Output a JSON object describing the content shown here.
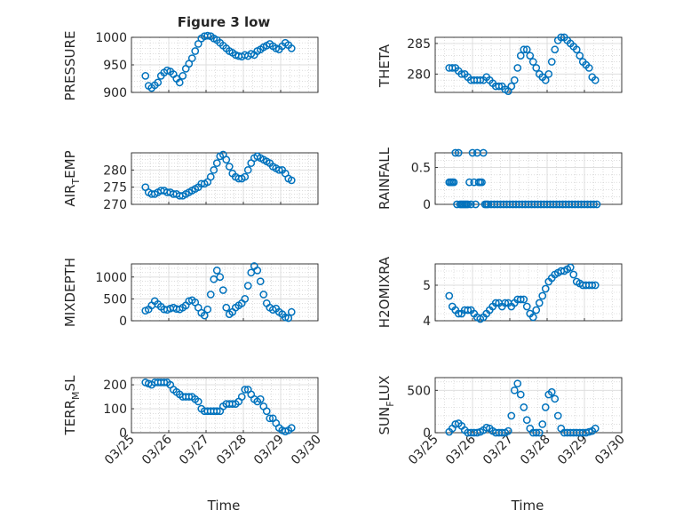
{
  "figure": {
    "title": "Figure 3 low",
    "xlabel": "Time",
    "x_tick_labels": [
      "03/25",
      "03/26",
      "03/27",
      "03/28",
      "03/29",
      "03/30"
    ],
    "marker_color": "#0072BD"
  },
  "chart_data": [
    {
      "type": "scatter",
      "ylabel": "PRESSURE",
      "xlim": [
        "03/25 00:00",
        "03/30 00:00"
      ],
      "ylim": [
        900,
        1000
      ],
      "y_ticks": [
        900,
        950,
        1000
      ],
      "grid": true,
      "x": [
        "03/25 09:00",
        "03/25 11:00",
        "03/25 13:00",
        "03/25 15:00",
        "03/25 17:00",
        "03/25 19:00",
        "03/25 21:00",
        "03/25 23:00",
        "03/26 01:00",
        "03/26 03:00",
        "03/26 05:00",
        "03/26 07:00",
        "03/26 09:00",
        "03/26 11:00",
        "03/26 13:00",
        "03/26 15:00",
        "03/26 17:00",
        "03/26 19:00",
        "03/26 21:00",
        "03/26 23:00",
        "03/27 01:00",
        "03/27 03:00",
        "03/27 05:00",
        "03/27 07:00",
        "03/27 09:00",
        "03/27 11:00",
        "03/27 13:00",
        "03/27 15:00",
        "03/27 17:00",
        "03/27 19:00",
        "03/27 21:00",
        "03/27 23:00",
        "03/28 01:00",
        "03/28 03:00",
        "03/28 05:00",
        "03/28 07:00",
        "03/28 09:00",
        "03/28 11:00",
        "03/28 13:00",
        "03/28 15:00",
        "03/28 17:00",
        "03/28 19:00",
        "03/28 21:00",
        "03/28 23:00",
        "03/29 01:00",
        "03/29 03:00",
        "03/29 05:00",
        "03/29 07:00"
      ],
      "y": [
        930,
        912,
        908,
        913,
        918,
        930,
        936,
        940,
        938,
        933,
        925,
        918,
        930,
        943,
        952,
        962,
        975,
        988,
        998,
        1002,
        1003,
        1002,
        998,
        995,
        990,
        985,
        980,
        975,
        972,
        968,
        966,
        965,
        968,
        966,
        970,
        968,
        975,
        978,
        982,
        985,
        988,
        984,
        980,
        978,
        984,
        990,
        986,
        980
      ]
    },
    {
      "type": "scatter",
      "ylabel": "THETA",
      "xlim": [
        "03/25 00:00",
        "03/30 00:00"
      ],
      "ylim": [
        277,
        286
      ],
      "y_ticks": [
        280,
        285
      ],
      "grid": true,
      "x": [
        "03/25 09:00",
        "03/25 11:00",
        "03/25 13:00",
        "03/25 15:00",
        "03/25 17:00",
        "03/25 19:00",
        "03/25 21:00",
        "03/25 23:00",
        "03/26 01:00",
        "03/26 03:00",
        "03/26 05:00",
        "03/26 07:00",
        "03/26 09:00",
        "03/26 11:00",
        "03/26 13:00",
        "03/26 15:00",
        "03/26 17:00",
        "03/26 19:00",
        "03/26 21:00",
        "03/26 23:00",
        "03/27 01:00",
        "03/27 03:00",
        "03/27 05:00",
        "03/27 07:00",
        "03/27 09:00",
        "03/27 11:00",
        "03/27 13:00",
        "03/27 15:00",
        "03/27 17:00",
        "03/27 19:00",
        "03/27 21:00",
        "03/27 23:00",
        "03/28 01:00",
        "03/28 03:00",
        "03/28 05:00",
        "03/28 07:00",
        "03/28 09:00",
        "03/28 11:00",
        "03/28 13:00",
        "03/28 15:00",
        "03/28 17:00",
        "03/28 19:00",
        "03/28 21:00",
        "03/28 23:00",
        "03/29 01:00",
        "03/29 03:00",
        "03/29 05:00",
        "03/29 07:00"
      ],
      "y": [
        281,
        281,
        281,
        280.5,
        280,
        280,
        279.5,
        279,
        279,
        279,
        279,
        279,
        279.5,
        279,
        278.5,
        278,
        278,
        278,
        277.5,
        277.2,
        278,
        279,
        281,
        283,
        284,
        284,
        283,
        282,
        281,
        280,
        279.5,
        279,
        280,
        282,
        284,
        285.5,
        286,
        286,
        285.5,
        285,
        284.5,
        284,
        283,
        282,
        281.5,
        281,
        279.5,
        279
      ]
    },
    {
      "type": "scatter",
      "ylabel": "AIR_TEMP",
      "xlim": [
        "03/25 00:00",
        "03/30 00:00"
      ],
      "ylim": [
        270,
        285
      ],
      "y_ticks": [
        270,
        275,
        280
      ],
      "grid": true,
      "x": [
        "03/25 09:00",
        "03/25 11:00",
        "03/25 13:00",
        "03/25 15:00",
        "03/25 17:00",
        "03/25 19:00",
        "03/25 21:00",
        "03/25 23:00",
        "03/26 01:00",
        "03/26 03:00",
        "03/26 05:00",
        "03/26 07:00",
        "03/26 09:00",
        "03/26 11:00",
        "03/26 13:00",
        "03/26 15:00",
        "03/26 17:00",
        "03/26 19:00",
        "03/26 21:00",
        "03/26 23:00",
        "03/27 01:00",
        "03/27 03:00",
        "03/27 05:00",
        "03/27 07:00",
        "03/27 09:00",
        "03/27 11:00",
        "03/27 13:00",
        "03/27 15:00",
        "03/27 17:00",
        "03/27 19:00",
        "03/27 21:00",
        "03/27 23:00",
        "03/28 01:00",
        "03/28 03:00",
        "03/28 05:00",
        "03/28 07:00",
        "03/28 09:00",
        "03/28 11:00",
        "03/28 13:00",
        "03/28 15:00",
        "03/28 17:00",
        "03/28 19:00",
        "03/28 21:00",
        "03/28 23:00",
        "03/29 01:00",
        "03/29 03:00",
        "03/29 05:00",
        "03/29 07:00"
      ],
      "y": [
        275,
        273.5,
        273,
        273,
        273.5,
        274,
        274,
        273.5,
        273.5,
        273,
        273,
        272.5,
        272.5,
        273,
        273.5,
        274,
        274.5,
        275,
        276,
        276,
        276.5,
        278,
        280,
        282,
        284,
        284.5,
        283,
        281,
        279,
        278,
        277.5,
        277.5,
        278,
        280,
        282,
        283.5,
        284,
        283.5,
        283,
        282.5,
        282,
        281,
        280.5,
        280,
        280,
        279,
        277.5,
        277
      ]
    },
    {
      "type": "scatter",
      "ylabel": "RAINFALL",
      "xlim": [
        "03/25 00:00",
        "03/30 00:00"
      ],
      "ylim": [
        0,
        0.7
      ],
      "y_ticks": [
        0,
        0.5
      ],
      "grid": true,
      "x": [
        "03/25 09:00",
        "03/25 10:00",
        "03/25 11:00",
        "03/25 12:00",
        "03/25 13:00",
        "03/25 14:00",
        "03/25 15:00",
        "03/25 16:00",
        "03/25 17:00",
        "03/25 18:00",
        "03/25 19:00",
        "03/25 20:00",
        "03/25 21:00",
        "03/25 22:00",
        "03/25 23:00",
        "03/26 00:00",
        "03/26 01:00",
        "03/26 02:00",
        "03/26 03:00",
        "03/26 04:00",
        "03/26 05:00",
        "03/26 06:00",
        "03/26 07:00",
        "03/26 08:00",
        "03/26 09:00",
        "03/26 10:00",
        "03/26 12:00",
        "03/26 14:00",
        "03/26 16:00",
        "03/26 18:00",
        "03/26 20:00",
        "03/26 22:00",
        "03/27 00:00",
        "03/27 02:00",
        "03/27 04:00",
        "03/27 06:00",
        "03/27 08:00",
        "03/27 10:00",
        "03/27 12:00",
        "03/27 14:00",
        "03/27 16:00",
        "03/27 18:00",
        "03/27 20:00",
        "03/27 22:00",
        "03/28 00:00",
        "03/28 02:00",
        "03/28 04:00",
        "03/28 06:00",
        "03/28 08:00",
        "03/28 10:00",
        "03/28 12:00",
        "03/28 14:00",
        "03/28 16:00",
        "03/28 18:00",
        "03/28 20:00",
        "03/28 22:00",
        "03/29 00:00",
        "03/29 02:00",
        "03/29 04:00",
        "03/29 06:00",
        "03/29 08:00"
      ],
      "y": [
        0.3,
        0.3,
        0.3,
        0.3,
        0.7,
        0,
        0.7,
        0,
        0,
        0,
        0,
        0,
        0,
        0.3,
        0,
        0.7,
        0.3,
        0,
        0.7,
        0.3,
        0.3,
        0.3,
        0.7,
        0,
        0,
        0,
        0,
        0,
        0,
        0,
        0,
        0,
        0,
        0,
        0,
        0,
        0,
        0,
        0,
        0,
        0,
        0,
        0,
        0,
        0,
        0,
        0,
        0,
        0,
        0,
        0,
        0,
        0,
        0,
        0,
        0,
        0,
        0,
        0,
        0,
        0
      ]
    },
    {
      "type": "scatter",
      "ylabel": "MIXDEPTH",
      "xlim": [
        "03/25 00:00",
        "03/30 00:00"
      ],
      "ylim": [
        0,
        1300
      ],
      "y_ticks": [
        0,
        500,
        1000
      ],
      "grid": true,
      "x": [
        "03/25 09:00",
        "03/25 11:00",
        "03/25 13:00",
        "03/25 15:00",
        "03/25 17:00",
        "03/25 19:00",
        "03/25 21:00",
        "03/25 23:00",
        "03/26 01:00",
        "03/26 03:00",
        "03/26 05:00",
        "03/26 07:00",
        "03/26 09:00",
        "03/26 11:00",
        "03/26 13:00",
        "03/26 15:00",
        "03/26 17:00",
        "03/26 19:00",
        "03/26 21:00",
        "03/26 23:00",
        "03/27 01:00",
        "03/27 03:00",
        "03/27 05:00",
        "03/27 07:00",
        "03/27 09:00",
        "03/27 11:00",
        "03/27 13:00",
        "03/27 15:00",
        "03/27 17:00",
        "03/27 19:00",
        "03/27 21:00",
        "03/27 23:00",
        "03/28 01:00",
        "03/28 03:00",
        "03/28 05:00",
        "03/28 07:00",
        "03/28 09:00",
        "03/28 11:00",
        "03/28 13:00",
        "03/28 15:00",
        "03/28 17:00",
        "03/28 19:00",
        "03/28 21:00",
        "03/28 23:00",
        "03/29 01:00",
        "03/29 03:00",
        "03/29 05:00",
        "03/29 07:00"
      ],
      "y": [
        230,
        260,
        350,
        450,
        380,
        320,
        260,
        250,
        280,
        300,
        270,
        260,
        300,
        350,
        450,
        470,
        420,
        300,
        180,
        120,
        260,
        600,
        950,
        1150,
        1000,
        700,
        300,
        150,
        200,
        300,
        350,
        400,
        500,
        800,
        1100,
        1250,
        1150,
        900,
        600,
        400,
        300,
        250,
        280,
        200,
        150,
        80,
        60,
        200
      ]
    },
    {
      "type": "scatter",
      "ylabel": "H2OMIXRA",
      "xlim": [
        "03/25 00:00",
        "03/30 00:00"
      ],
      "ylim": [
        4,
        5.6
      ],
      "y_ticks": [
        4,
        5
      ],
      "grid": true,
      "x": [
        "03/25 09:00",
        "03/25 11:00",
        "03/25 13:00",
        "03/25 15:00",
        "03/25 17:00",
        "03/25 19:00",
        "03/25 21:00",
        "03/25 23:00",
        "03/26 01:00",
        "03/26 03:00",
        "03/26 05:00",
        "03/26 07:00",
        "03/26 09:00",
        "03/26 11:00",
        "03/26 13:00",
        "03/26 15:00",
        "03/26 17:00",
        "03/26 19:00",
        "03/26 21:00",
        "03/26 23:00",
        "03/27 01:00",
        "03/27 03:00",
        "03/27 05:00",
        "03/27 07:00",
        "03/27 09:00",
        "03/27 11:00",
        "03/27 13:00",
        "03/27 15:00",
        "03/27 17:00",
        "03/27 19:00",
        "03/27 21:00",
        "03/27 23:00",
        "03/28 01:00",
        "03/28 03:00",
        "03/28 05:00",
        "03/28 07:00",
        "03/28 09:00",
        "03/28 11:00",
        "03/28 13:00",
        "03/28 15:00",
        "03/28 17:00",
        "03/28 19:00",
        "03/28 21:00",
        "03/28 23:00",
        "03/29 01:00",
        "03/29 03:00",
        "03/29 05:00",
        "03/29 07:00"
      ],
      "y": [
        4.7,
        4.4,
        4.3,
        4.2,
        4.2,
        4.3,
        4.3,
        4.3,
        4.2,
        4.1,
        4.05,
        4.1,
        4.2,
        4.3,
        4.4,
        4.5,
        4.5,
        4.4,
        4.5,
        4.5,
        4.4,
        4.5,
        4.6,
        4.6,
        4.6,
        4.4,
        4.2,
        4.1,
        4.3,
        4.5,
        4.7,
        4.9,
        5.1,
        5.2,
        5.3,
        5.35,
        5.4,
        5.4,
        5.45,
        5.5,
        5.3,
        5.1,
        5.05,
        5.0,
        5.0,
        5.0,
        5.0,
        5.0
      ]
    },
    {
      "type": "scatter",
      "ylabel": "TERR_MSL",
      "xlim": [
        "03/25 00:00",
        "03/30 00:00"
      ],
      "ylim": [
        0,
        230
      ],
      "y_ticks": [
        0,
        100,
        200
      ],
      "grid": true,
      "x": [
        "03/25 09:00",
        "03/25 11:00",
        "03/25 13:00",
        "03/25 15:00",
        "03/25 17:00",
        "03/25 19:00",
        "03/25 21:00",
        "03/25 23:00",
        "03/26 01:00",
        "03/26 03:00",
        "03/26 05:00",
        "03/26 07:00",
        "03/26 09:00",
        "03/26 11:00",
        "03/26 13:00",
        "03/26 15:00",
        "03/26 17:00",
        "03/26 19:00",
        "03/26 21:00",
        "03/26 23:00",
        "03/27 01:00",
        "03/27 03:00",
        "03/27 05:00",
        "03/27 07:00",
        "03/27 09:00",
        "03/27 11:00",
        "03/27 13:00",
        "03/27 15:00",
        "03/27 17:00",
        "03/27 19:00",
        "03/27 21:00",
        "03/27 23:00",
        "03/28 01:00",
        "03/28 03:00",
        "03/28 05:00",
        "03/28 07:00",
        "03/28 09:00",
        "03/28 11:00",
        "03/28 13:00",
        "03/28 15:00",
        "03/28 17:00",
        "03/28 19:00",
        "03/28 21:00",
        "03/28 23:00",
        "03/29 01:00",
        "03/29 03:00",
        "03/29 05:00",
        "03/29 07:00"
      ],
      "y": [
        210,
        205,
        200,
        210,
        210,
        210,
        210,
        210,
        200,
        180,
        170,
        160,
        150,
        150,
        150,
        150,
        140,
        130,
        100,
        90,
        90,
        90,
        90,
        90,
        90,
        110,
        120,
        120,
        120,
        120,
        130,
        150,
        180,
        180,
        160,
        140,
        130,
        140,
        110,
        90,
        60,
        60,
        40,
        20,
        10,
        5,
        10,
        20
      ]
    },
    {
      "type": "scatter",
      "ylabel": "SUN_FLUX",
      "xlim": [
        "03/25 00:00",
        "03/30 00:00"
      ],
      "ylim": [
        0,
        650
      ],
      "y_ticks": [
        0,
        500
      ],
      "grid": true,
      "x": [
        "03/25 09:00",
        "03/25 11:00",
        "03/25 13:00",
        "03/25 15:00",
        "03/25 17:00",
        "03/25 19:00",
        "03/25 21:00",
        "03/25 23:00",
        "03/26 01:00",
        "03/26 03:00",
        "03/26 05:00",
        "03/26 07:00",
        "03/26 09:00",
        "03/26 11:00",
        "03/26 13:00",
        "03/26 15:00",
        "03/26 17:00",
        "03/26 19:00",
        "03/26 21:00",
        "03/26 23:00",
        "03/27 01:00",
        "03/27 03:00",
        "03/27 05:00",
        "03/27 07:00",
        "03/27 09:00",
        "03/27 11:00",
        "03/27 13:00",
        "03/27 15:00",
        "03/27 17:00",
        "03/27 19:00",
        "03/27 21:00",
        "03/27 23:00",
        "03/28 01:00",
        "03/28 03:00",
        "03/28 05:00",
        "03/28 07:00",
        "03/28 09:00",
        "03/28 11:00",
        "03/28 13:00",
        "03/28 15:00",
        "03/28 17:00",
        "03/28 19:00",
        "03/28 21:00",
        "03/28 23:00",
        "03/29 01:00",
        "03/29 03:00",
        "03/29 05:00",
        "03/29 07:00"
      ],
      "y": [
        10,
        50,
        100,
        110,
        80,
        30,
        0,
        0,
        0,
        0,
        10,
        30,
        60,
        50,
        20,
        0,
        0,
        0,
        0,
        20,
        200,
        500,
        580,
        450,
        300,
        150,
        50,
        0,
        0,
        0,
        100,
        300,
        450,
        480,
        400,
        200,
        50,
        0,
        0,
        0,
        0,
        0,
        0,
        0,
        0,
        10,
        20,
        50
      ]
    }
  ]
}
